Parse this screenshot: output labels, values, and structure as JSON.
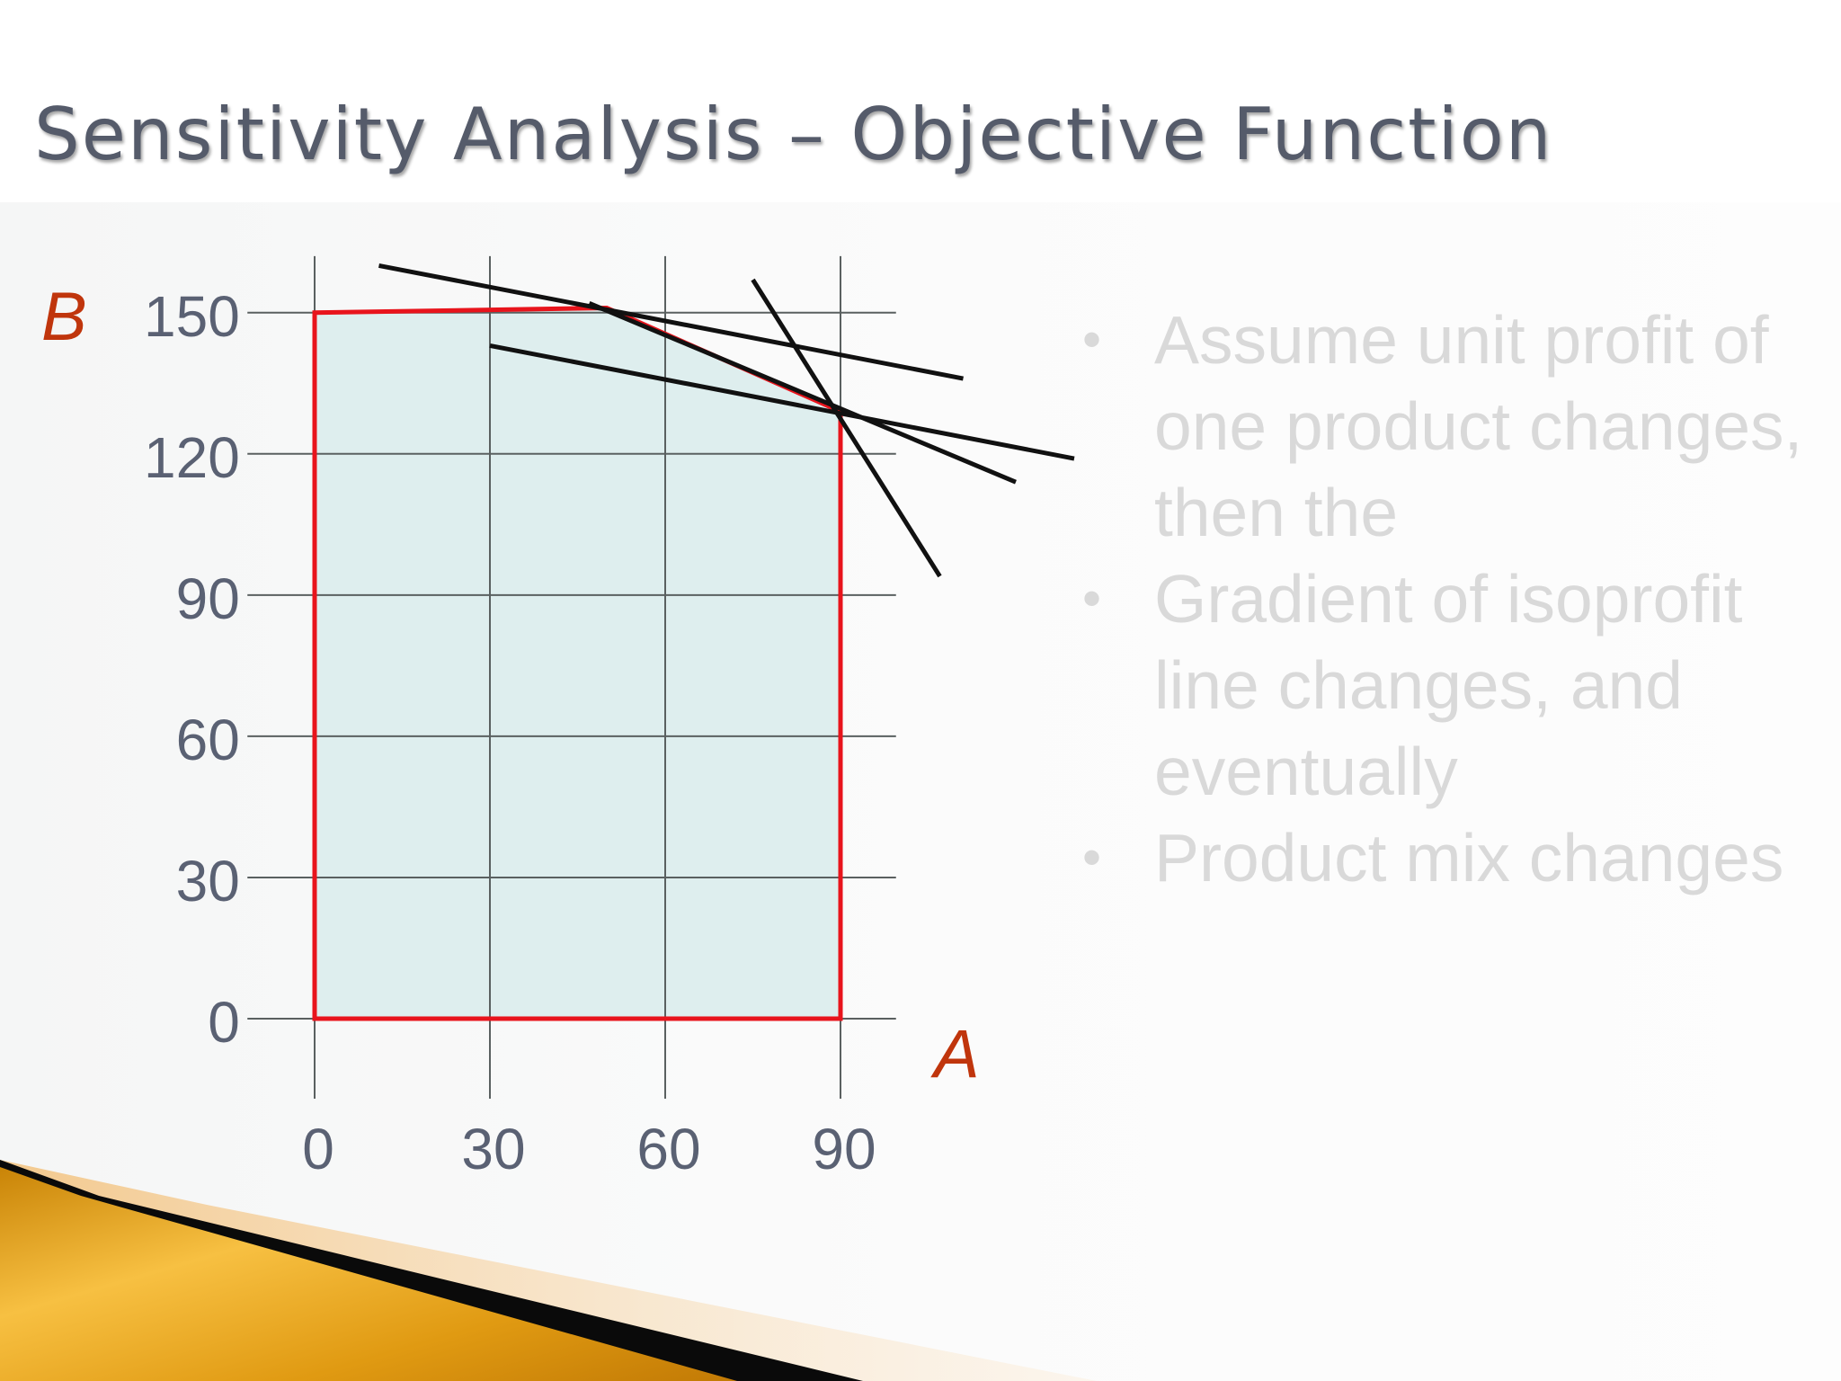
{
  "slide": {
    "title": "Sensitivity Analysis – Objective Function",
    "bullets": [
      "Assume unit profit of one product changes, then the",
      "Gradient of isoprofit line changes, and eventually",
      "Product mix changes"
    ],
    "colors": {
      "title": "#555b6a",
      "bullet_text": "#d9d9d9",
      "accent_gold": "#e8a21a"
    }
  },
  "chart_data": {
    "type": "line",
    "xlabel": "A",
    "ylabel": "B",
    "xticks": [
      0,
      30,
      60,
      90
    ],
    "yticks": [
      0,
      30,
      60,
      90,
      120,
      150
    ],
    "xlim": [
      -15,
      120
    ],
    "ylim": [
      -17,
      162
    ],
    "grid": true,
    "feasible_region": {
      "fill": "#deeeee",
      "stroke": "#e8141c",
      "vertices": [
        [
          0,
          0
        ],
        [
          0,
          150
        ],
        [
          50,
          151
        ],
        [
          90,
          129
        ],
        [
          90,
          0
        ]
      ]
    },
    "isoprofit_lines": [
      {
        "from": [
          11,
          160
        ],
        "to": [
          111,
          136
        ]
      },
      {
        "from": [
          30,
          143
        ],
        "to": [
          130,
          119
        ]
      },
      {
        "from": [
          47,
          152
        ],
        "to": [
          120,
          114
        ]
      },
      {
        "from": [
          75,
          157
        ],
        "to": [
          107,
          94
        ]
      }
    ],
    "colors": {
      "axis_labels": "#c0350c",
      "ticks": "#5a6173",
      "lines": "#111111",
      "grid": "#5a6060"
    }
  }
}
